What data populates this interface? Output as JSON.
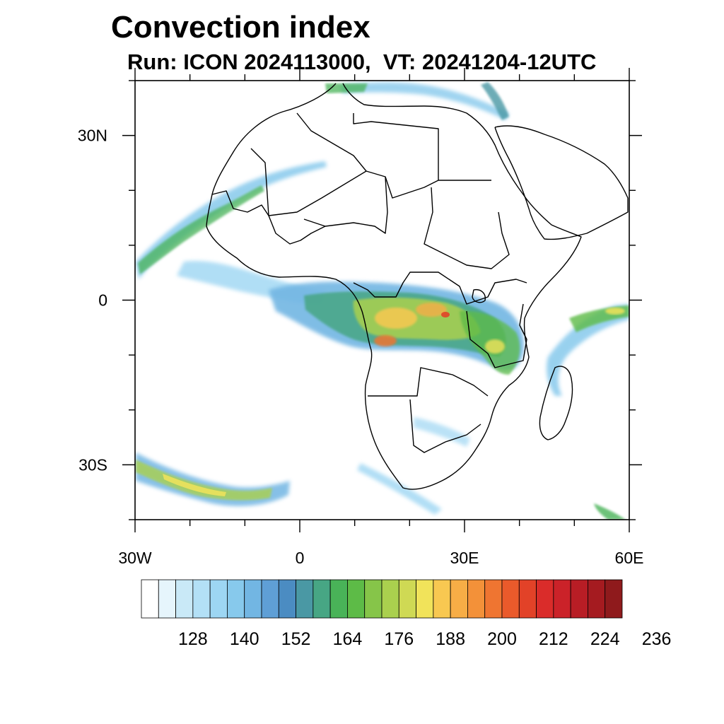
{
  "header": {
    "title": "Convection index",
    "subtitle": "Run: ICON 2024113000,  VT: 20241204-12UTC"
  },
  "map": {
    "lon_range": [
      -30,
      60
    ],
    "lat_range": [
      -40,
      40
    ],
    "x_ticks": [
      {
        "value": -30,
        "label": "30W"
      },
      {
        "value": 0,
        "label": "0"
      },
      {
        "value": 30,
        "label": "30E"
      },
      {
        "value": 60,
        "label": "60E"
      }
    ],
    "y_ticks": [
      {
        "value": 30,
        "label": "30N"
      },
      {
        "value": 0,
        "label": "0"
      },
      {
        "value": -30,
        "label": "30S"
      }
    ]
  },
  "colorbar": {
    "colors": [
      "#ffffff",
      "#e6f5fc",
      "#c9e9f7",
      "#b3e0f6",
      "#9dd6f3",
      "#87c9ec",
      "#72b6e3",
      "#5f9fd6",
      "#4b8cc2",
      "#4a98a4",
      "#47a684",
      "#49b358",
      "#5dbb47",
      "#86c549",
      "#aad04e",
      "#cfd954",
      "#f1e35a",
      "#f8c851",
      "#f7ad46",
      "#f39139",
      "#ef7531",
      "#ea5a2b",
      "#e24228",
      "#da2c2a",
      "#cb2229",
      "#b81d25",
      "#a51b20",
      "#8f1a1c"
    ],
    "labels": [
      "128",
      "140",
      "152",
      "164",
      "176",
      "188",
      "200",
      "212",
      "224",
      "236"
    ]
  }
}
